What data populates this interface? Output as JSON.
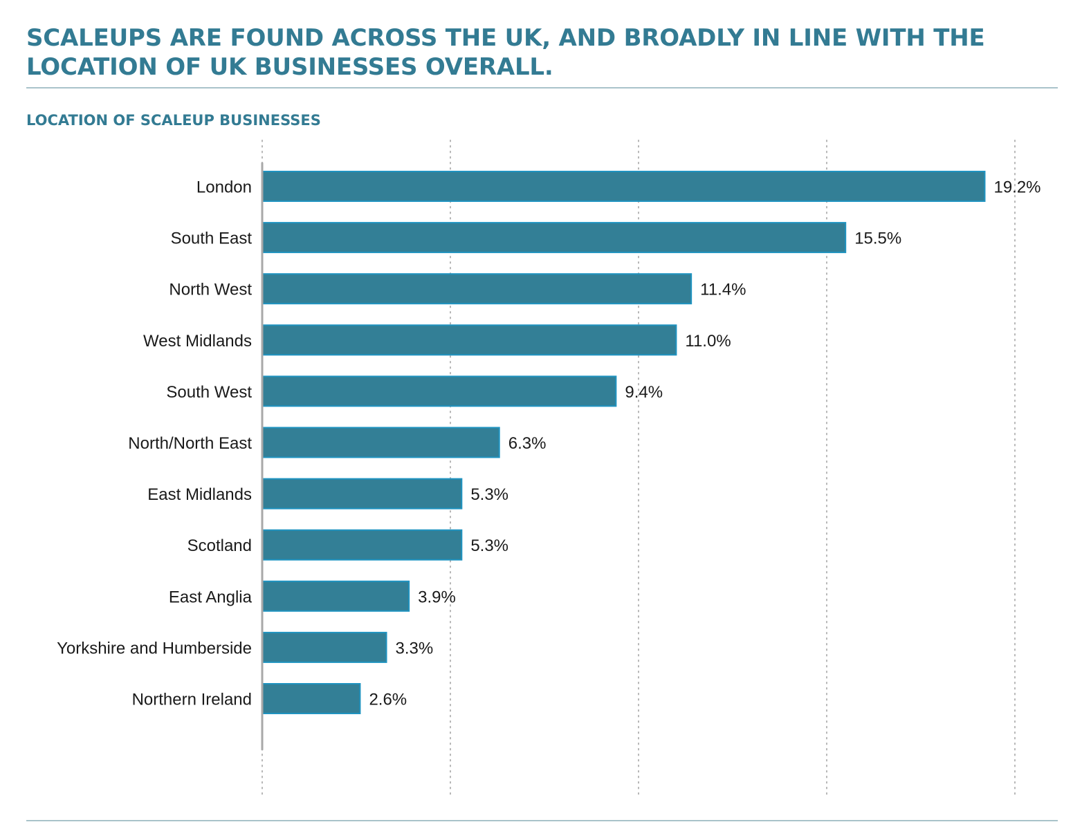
{
  "header": {
    "title": "SCALEUPS ARE FOUND ACROSS THE UK, AND BROADLY IN LINE WITH THE LOCATION OF UK BUSINESSES OVERALL.",
    "subtitle": "LOCATION OF SCALEUP BUSINESSES"
  },
  "colors": {
    "accent": "#337b93",
    "bar_fill": "#337f96",
    "bar_stroke": "#1f93c0",
    "rule": "#a9c3ca",
    "grid": "#b5b5b5",
    "axis": "#a8a8a8"
  },
  "chart_data": {
    "type": "bar",
    "orientation": "horizontal",
    "categories": [
      "London",
      "South East",
      "North West",
      "West Midlands",
      "South West",
      "North/North East",
      "East Midlands",
      "Scotland",
      "East Anglia",
      "Yorkshire and Humberside",
      "Northern Ireland"
    ],
    "values": [
      19.2,
      15.5,
      11.4,
      11.0,
      9.4,
      6.3,
      5.3,
      5.3,
      3.9,
      3.3,
      2.6
    ],
    "value_labels": [
      "19.2%",
      "15.5%",
      "11.4%",
      "11.0%",
      "9.4%",
      "6.3%",
      "5.3%",
      "5.3%",
      "3.9%",
      "3.3%",
      "2.6%"
    ],
    "unit": "%",
    "xlim": [
      0,
      20
    ],
    "grid": true,
    "grid_style": "dotted",
    "gridline_values": [
      0,
      5,
      10,
      15,
      20
    ],
    "tick_labels_shown": false,
    "legend": "none"
  }
}
